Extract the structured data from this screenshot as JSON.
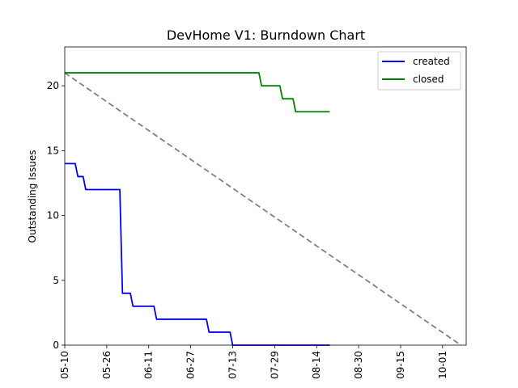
{
  "chart_data": {
    "type": "line",
    "title": "DevHome V1: Burndown Chart",
    "xlabel": "",
    "ylabel": "Outstanding Issues",
    "xlim": [
      "2024-05-10",
      "2024-10-10"
    ],
    "ylim": [
      0,
      23
    ],
    "x_ticks": [
      "2024-05-10",
      "2024-05-26",
      "2024-06-11",
      "2024-06-27",
      "2024-07-13",
      "2024-07-29",
      "2024-08-14",
      "2024-08-30",
      "2024-09-15",
      "2024-10-01"
    ],
    "x_tick_labels": [
      "05-10",
      "05-26",
      "06-11",
      "06-27",
      "07-13",
      "07-29",
      "08-14",
      "08-30",
      "09-15",
      "10-01"
    ],
    "y_ticks": [
      0,
      5,
      10,
      15,
      20
    ],
    "y_tick_labels": [
      "0",
      "5",
      "10",
      "15",
      "20"
    ],
    "grid": false,
    "legend_position": "top-right",
    "series": [
      {
        "name": "created",
        "color": "#0000ff",
        "points": [
          [
            "2024-05-10",
            14
          ],
          [
            "2024-05-14",
            14
          ],
          [
            "2024-05-15",
            13
          ],
          [
            "2024-05-17",
            13
          ],
          [
            "2024-05-18",
            12
          ],
          [
            "2024-05-31",
            12
          ],
          [
            "2024-06-01",
            4
          ],
          [
            "2024-06-04",
            4
          ],
          [
            "2024-06-05",
            3
          ],
          [
            "2024-06-13",
            3
          ],
          [
            "2024-06-14",
            2
          ],
          [
            "2024-07-03",
            2
          ],
          [
            "2024-07-04",
            1
          ],
          [
            "2024-07-12",
            1
          ],
          [
            "2024-07-13",
            0
          ],
          [
            "2024-08-19",
            0
          ]
        ]
      },
      {
        "name": "closed",
        "color": "#008000",
        "points": [
          [
            "2024-05-10",
            21
          ],
          [
            "2024-07-23",
            21
          ],
          [
            "2024-07-24",
            20
          ],
          [
            "2024-07-31",
            20
          ],
          [
            "2024-08-01",
            19
          ],
          [
            "2024-08-05",
            19
          ],
          [
            "2024-08-06",
            18
          ],
          [
            "2024-08-19",
            18
          ]
        ]
      }
    ],
    "ideal_line": {
      "color": "#808080",
      "points": [
        [
          "2024-05-10",
          21
        ],
        [
          "2024-10-08",
          0
        ]
      ]
    }
  }
}
